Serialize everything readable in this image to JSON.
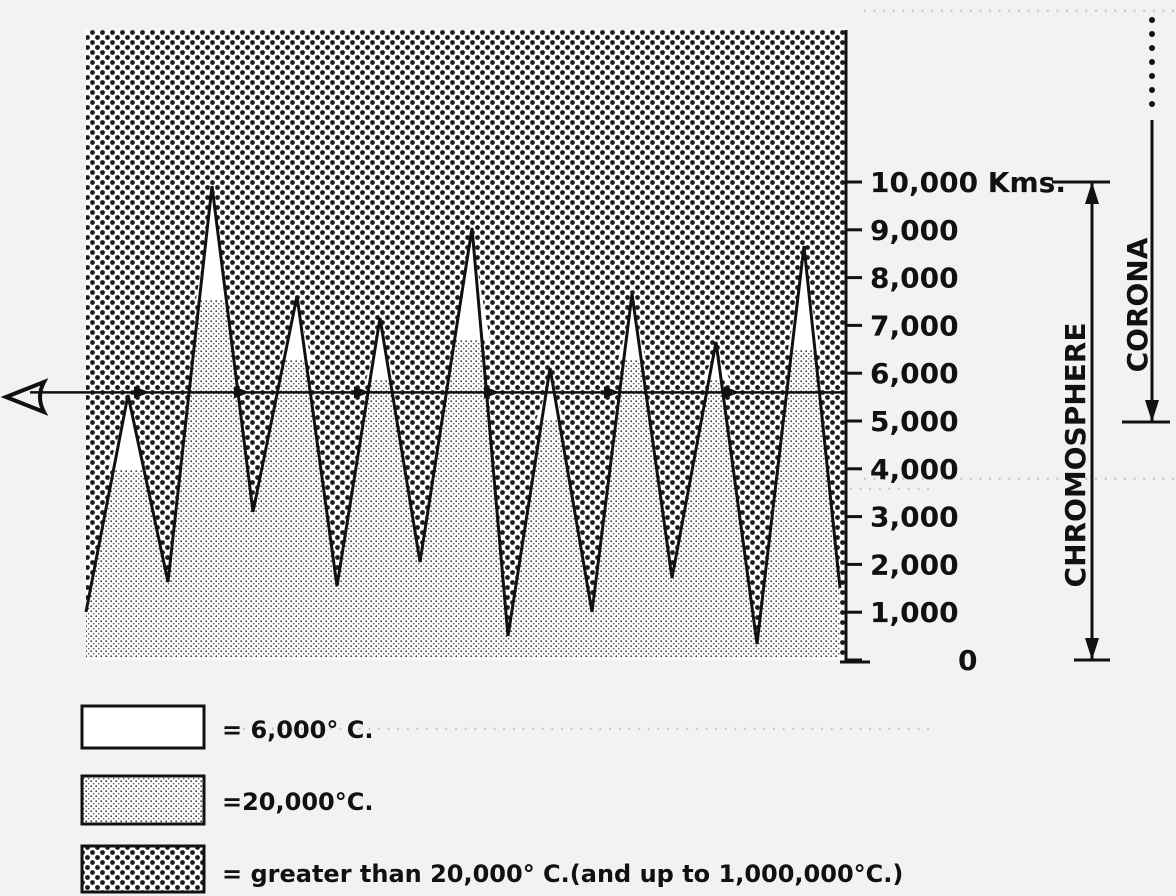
{
  "axis": {
    "unit": "Kms.",
    "ticks": [
      {
        "value": 0,
        "label": "0"
      },
      {
        "value": 1000,
        "label": "1,000"
      },
      {
        "value": 2000,
        "label": "2,000"
      },
      {
        "value": 3000,
        "label": "3,000"
      },
      {
        "value": 4000,
        "label": "4,000"
      },
      {
        "value": 5000,
        "label": "5,000"
      },
      {
        "value": 6000,
        "label": "6,000"
      },
      {
        "value": 7000,
        "label": "7,000"
      },
      {
        "value": 8000,
        "label": "8,000"
      },
      {
        "value": 9000,
        "label": "9,000"
      },
      {
        "value": 10000,
        "label": "10,000 Kms."
      }
    ]
  },
  "regions": {
    "chromosphere": {
      "label": "CHROMOSPHERE",
      "from_km": 0,
      "to_km": 10000
    },
    "corona": {
      "label": "CORONA",
      "from_km": 5000,
      "to_km": null
    }
  },
  "line_of_sight_km": 5600,
  "legend": [
    {
      "key": "white",
      "label": "= 6,000° C."
    },
    {
      "key": "light",
      "label": "=20,000°C."
    },
    {
      "key": "dense",
      "label": "= greater than 20,000° C.(and up to 1,000,000°C.)"
    }
  ]
}
